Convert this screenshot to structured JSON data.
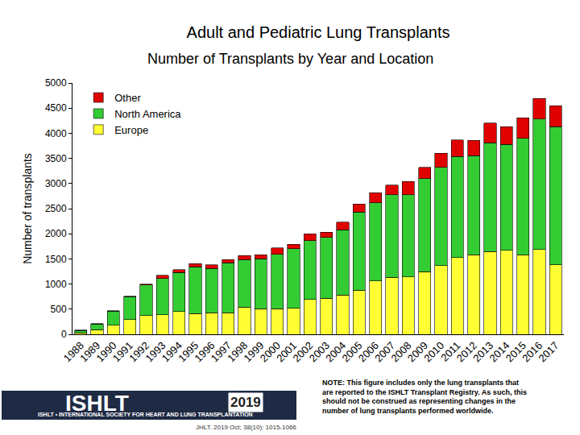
{
  "chart_data": {
    "type": "bar",
    "stacked": true,
    "title": "Adult and Pediatric Lung Transplants",
    "subtitle": "Number of Transplants by Year and Location",
    "y_label": "Number of transplants",
    "categories": [
      "1988",
      "1989",
      "1990",
      "1991",
      "1992",
      "1993",
      "1994",
      "1995",
      "1996",
      "1997",
      "1998",
      "1999",
      "2000",
      "2001",
      "2002",
      "2003",
      "2004",
      "2005",
      "2006",
      "2007",
      "2008",
      "2009",
      "2010",
      "2011",
      "2012",
      "2013",
      "2014",
      "2015",
      "2016",
      "2017"
    ],
    "series": [
      {
        "name": "Europe",
        "color": "#ffff33",
        "values": [
          30,
          90,
          180,
          290,
          370,
          390,
          450,
          410,
          430,
          430,
          540,
          510,
          510,
          520,
          690,
          720,
          780,
          880,
          1060,
          1130,
          1140,
          1250,
          1370,
          1530,
          1580,
          1650,
          1670,
          1580,
          1690,
          1380
        ]
      },
      {
        "name": "North America",
        "color": "#33cc33",
        "values": [
          50,
          115,
          280,
          460,
          610,
          720,
          780,
          930,
          880,
          990,
          950,
          990,
          1080,
          1180,
          1170,
          1210,
          1300,
          1550,
          1560,
          1650,
          1640,
          1850,
          1950,
          2010,
          1970,
          2160,
          2110,
          2320,
          2590,
          2750
        ]
      },
      {
        "name": "Other",
        "color": "#e00000",
        "values": [
          5,
          10,
          10,
          10,
          20,
          60,
          60,
          70,
          70,
          70,
          80,
          80,
          130,
          90,
          140,
          100,
          150,
          160,
          200,
          190,
          260,
          220,
          280,
          330,
          310,
          390,
          350,
          410,
          410,
          420
        ]
      }
    ],
    "ylim": [
      0,
      5000
    ],
    "yticks": [
      0,
      500,
      1000,
      1500,
      2000,
      2500,
      3000,
      3500,
      4000,
      4500,
      5000
    ],
    "grid": false,
    "legend": "top-left",
    "annotations": [
      "ISHLT",
      "ISHLT • INTERNATIONAL SOCIETY FOR HEART AND LUNG TRANSPLANTATION",
      "2019",
      "JHLT. 2019 Oct; 38(10): 1015-1066",
      "NOTE: This figure includes only the lung transplants that are reported to the ISHLT Transplant Registry. As such, this should not be construed as representing changes in the number of lung transplants performed worldwide."
    ]
  }
}
